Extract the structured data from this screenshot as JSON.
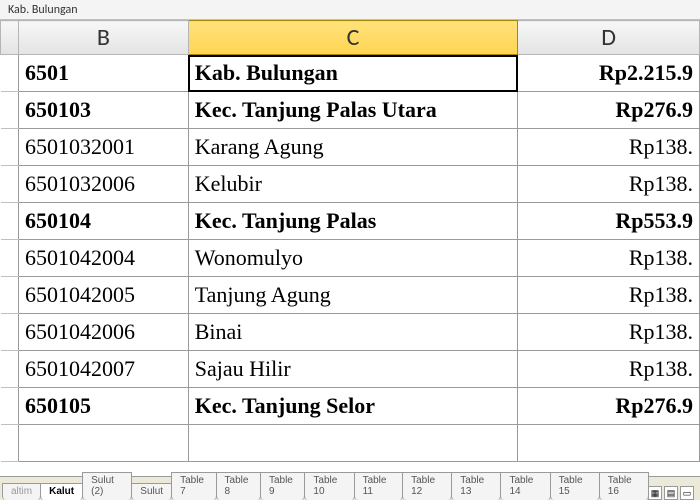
{
  "formula_bar": {
    "value": "Kab. Bulungan"
  },
  "columns": [
    {
      "key": "A",
      "label": "",
      "active": false
    },
    {
      "key": "B",
      "label": "B",
      "active": false
    },
    {
      "key": "C",
      "label": "C",
      "active": true
    },
    {
      "key": "D",
      "label": "D",
      "active": false
    }
  ],
  "rows": [
    {
      "bold": true,
      "selected_col": "C",
      "B": "6501",
      "C": "Kab. Bulungan",
      "D": "Rp2.215.9"
    },
    {
      "bold": true,
      "B": "650103",
      "C": "Kec. Tanjung Palas Utara",
      "D": "Rp276.9"
    },
    {
      "bold": false,
      "B": "6501032001",
      "C": "Karang Agung",
      "D": "Rp138."
    },
    {
      "bold": false,
      "B": "6501032006",
      "C": "Kelubir",
      "D": "Rp138."
    },
    {
      "bold": true,
      "B": "650104",
      "C": "Kec. Tanjung Palas",
      "D": "Rp553.9"
    },
    {
      "bold": false,
      "B": "6501042004",
      "C": "Wonomulyo",
      "D": "Rp138."
    },
    {
      "bold": false,
      "B": "6501042005",
      "C": "Tanjung Agung",
      "D": "Rp138."
    },
    {
      "bold": false,
      "B": "6501042006",
      "C": "Binai",
      "D": "Rp138."
    },
    {
      "bold": false,
      "B": "6501042007",
      "C": "Sajau Hilir",
      "D": "Rp138."
    },
    {
      "bold": true,
      "B": "650105",
      "C": "Kec. Tanjung Selor",
      "D": "Rp276.9"
    },
    {
      "bold": false,
      "B": "",
      "C": "",
      "D": ""
    }
  ],
  "tabs": {
    "items": [
      {
        "label": "altim",
        "active": false,
        "partial": true
      },
      {
        "label": "Kalut",
        "active": true
      },
      {
        "label": "Sulut (2)",
        "active": false
      },
      {
        "label": "Sulut",
        "active": false
      },
      {
        "label": "Table 7",
        "active": false
      },
      {
        "label": "Table 8",
        "active": false
      },
      {
        "label": "Table 9",
        "active": false
      },
      {
        "label": "Table 10",
        "active": false
      },
      {
        "label": "Table 11",
        "active": false
      },
      {
        "label": "Table 12",
        "active": false
      },
      {
        "label": "Table 13",
        "active": false
      },
      {
        "label": "Table 14",
        "active": false
      },
      {
        "label": "Table 15",
        "active": false
      },
      {
        "label": "Table 16",
        "active": false
      }
    ]
  },
  "view_icons": {
    "a": "▦",
    "b": "▤",
    "c": "▭"
  }
}
